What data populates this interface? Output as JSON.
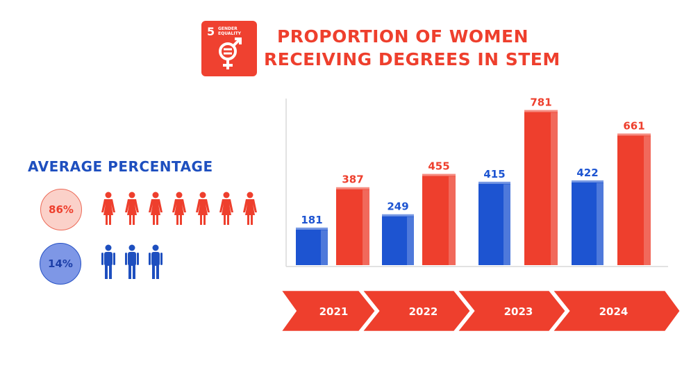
{
  "sdg": {
    "number": "5",
    "line1": "GENDER",
    "line2": "EQUALITY",
    "icon": "gender-equality-icon",
    "color": "#ef4130"
  },
  "title_line1": "PROPORTION OF WOMEN",
  "title_line2": "RECEIVING DEGREES IN STEM",
  "average": {
    "title": "AVERAGE PERCENTAGE",
    "women_percent": "86%",
    "men_percent": "14%",
    "women_icon": "woman-icon",
    "men_icon": "man-icon",
    "women_icon_count": 7,
    "men_icon_count": 3
  },
  "colors": {
    "red": "#ee3f2d",
    "blue": "#1d54d1",
    "dark_blue": "#1e4fbf"
  },
  "chart_data": {
    "type": "bar",
    "categories": [
      "2021",
      "2022",
      "2023",
      "2024"
    ],
    "series": [
      {
        "values": [
          181,
          249,
          415,
          422
        ],
        "color": "#1d54d1"
      },
      {
        "values": [
          387,
          455,
          781,
          661
        ],
        "color": "#ee3f2d"
      }
    ],
    "title": "PROPORTION OF WOMEN RECEIVING DEGREES IN STEM",
    "xlabel": "",
    "ylabel": "",
    "ylim": [
      0,
      850
    ],
    "grid": false,
    "legend": "none",
    "data_labels": true
  }
}
